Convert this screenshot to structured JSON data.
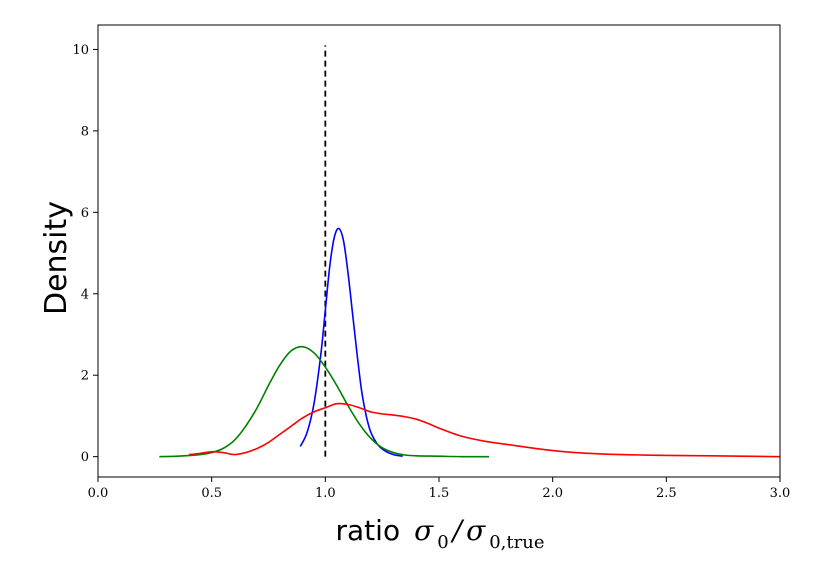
{
  "chart_data": {
    "type": "line",
    "xlabel": "ratio",
    "xlabel_math": "σ",
    "xlabel_sub1": "0",
    "xlabel_slash": "/",
    "xlabel_math2": "σ",
    "xlabel_sub2": "0,true",
    "ylabel": "Density",
    "xlim": [
      0.0,
      3.0
    ],
    "ylim": [
      -0.5,
      10.6
    ],
    "xticks": [
      "0.0",
      "0.5",
      "1.0",
      "1.5",
      "2.0",
      "2.5",
      "3.0"
    ],
    "yticks": [
      "0",
      "2",
      "4",
      "6",
      "8",
      "10"
    ],
    "grid": false,
    "reference_line": {
      "x": 1.0,
      "y_range": [
        0,
        10.1
      ],
      "style": "dashed",
      "color": "#000000"
    },
    "series": [
      {
        "color": "#0000ff",
        "x": [
          0.89,
          0.92,
          0.95,
          0.98,
          1.0,
          1.02,
          1.04,
          1.06,
          1.08,
          1.1,
          1.12,
          1.14,
          1.16,
          1.18,
          1.2,
          1.23,
          1.26,
          1.3,
          1.34
        ],
        "y": [
          0.25,
          0.6,
          1.3,
          2.5,
          3.6,
          4.7,
          5.4,
          5.6,
          5.3,
          4.5,
          3.5,
          2.5,
          1.6,
          1.0,
          0.6,
          0.3,
          0.15,
          0.05,
          0.01
        ]
      },
      {
        "color": "#008000",
        "x": [
          0.27,
          0.35,
          0.45,
          0.5,
          0.55,
          0.6,
          0.65,
          0.7,
          0.75,
          0.8,
          0.85,
          0.9,
          0.95,
          1.0,
          1.05,
          1.1,
          1.15,
          1.2,
          1.25,
          1.3,
          1.35,
          1.4,
          1.5,
          1.6,
          1.72
        ],
        "y": [
          0.0,
          0.01,
          0.05,
          0.1,
          0.2,
          0.4,
          0.75,
          1.2,
          1.75,
          2.25,
          2.6,
          2.7,
          2.55,
          2.2,
          1.75,
          1.25,
          0.8,
          0.45,
          0.22,
          0.1,
          0.04,
          0.02,
          0.01,
          0.0,
          0.0
        ]
      },
      {
        "color": "#ff0000",
        "x": [
          0.4,
          0.45,
          0.5,
          0.55,
          0.6,
          0.65,
          0.7,
          0.75,
          0.8,
          0.85,
          0.9,
          0.95,
          1.0,
          1.05,
          1.1,
          1.15,
          1.2,
          1.25,
          1.3,
          1.35,
          1.4,
          1.45,
          1.5,
          1.6,
          1.7,
          1.8,
          1.9,
          2.0,
          2.1,
          2.2,
          2.3,
          2.5,
          2.7,
          3.0
        ],
        "y": [
          0.05,
          0.08,
          0.12,
          0.1,
          0.05,
          0.1,
          0.2,
          0.35,
          0.55,
          0.75,
          0.95,
          1.1,
          1.2,
          1.3,
          1.28,
          1.2,
          1.1,
          1.05,
          1.02,
          0.98,
          0.92,
          0.82,
          0.7,
          0.5,
          0.38,
          0.3,
          0.22,
          0.15,
          0.1,
          0.07,
          0.05,
          0.03,
          0.02,
          0.0
        ]
      }
    ]
  }
}
